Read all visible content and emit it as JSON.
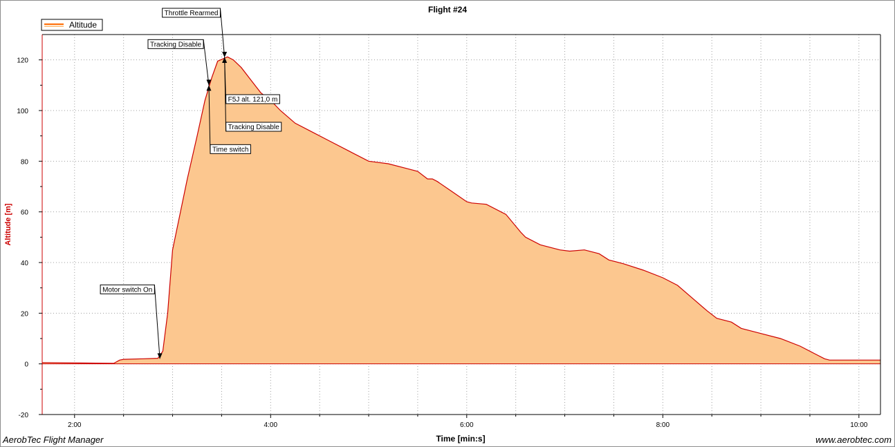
{
  "colors": {
    "line": "#cc0000",
    "fill": "#fcc78f",
    "axis_label": "#cc0000",
    "grid": "#9c9c9c",
    "annotation_box": "#ffffff",
    "legend_line": "#ff6a00"
  },
  "footer": {
    "left": "AerobTec Flight Manager",
    "right": "www.aerobtec.com"
  },
  "chart_data": {
    "type": "area",
    "title": "Flight #24",
    "xlabel": "Time [min:s]",
    "ylabel": "Altitude [m]",
    "xlim": [
      1.67,
      10.22
    ],
    "ylim": [
      -20,
      130
    ],
    "grid": true,
    "legend": {
      "placement": "top-left",
      "entries": [
        "Altitude"
      ]
    },
    "x_ticks": [
      {
        "value": 2,
        "label": "2:00"
      },
      {
        "value": 4,
        "label": "4:00"
      },
      {
        "value": 6,
        "label": "6:00"
      },
      {
        "value": 8,
        "label": "8:00"
      },
      {
        "value": 10,
        "label": "10:00"
      }
    ],
    "y_ticks": [
      -20,
      0,
      20,
      40,
      60,
      80,
      100,
      120
    ],
    "series": [
      {
        "name": "Altitude",
        "x": [
          1.67,
          2.4,
          2.46,
          2.5,
          2.7,
          2.85,
          2.9,
          2.95,
          3.0,
          3.08,
          3.15,
          3.25,
          3.33,
          3.4,
          3.46,
          3.52,
          3.56,
          3.62,
          3.7,
          3.8,
          3.9,
          4.0,
          4.1,
          4.25,
          4.4,
          4.6,
          4.8,
          5.0,
          5.2,
          5.4,
          5.5,
          5.6,
          5.65,
          5.7,
          5.85,
          6.0,
          6.05,
          6.2,
          6.4,
          6.55,
          6.6,
          6.75,
          6.95,
          7.05,
          7.2,
          7.35,
          7.45,
          7.6,
          7.8,
          8.0,
          8.15,
          8.3,
          8.45,
          8.55,
          8.7,
          8.8,
          9.0,
          9.2,
          9.4,
          9.55,
          9.65,
          9.7,
          10.22
        ],
        "values": [
          0.5,
          0.2,
          1.5,
          1.8,
          2.0,
          2.2,
          5,
          20,
          45,
          60,
          73,
          90,
          104,
          113,
          119.5,
          120.5,
          121.2,
          120,
          117,
          112,
          107,
          104,
          100,
          95,
          92,
          88,
          84,
          80,
          79,
          77,
          76,
          73,
          73,
          72,
          68,
          64,
          63.5,
          63,
          59,
          52,
          50,
          47,
          45,
          44.5,
          45,
          43.5,
          41,
          39.5,
          37,
          34,
          31,
          26,
          21,
          18,
          16.5,
          14,
          12,
          10,
          7,
          4,
          2,
          1.5,
          1.5
        ]
      }
    ],
    "annotations": [
      {
        "label": "Motor switch On",
        "x": 2.87,
        "y": 2
      },
      {
        "label": "Tracking Disable",
        "x": 3.37,
        "y": 110
      },
      {
        "label": "Throttle Rearmed",
        "x": 3.53,
        "y": 121
      },
      {
        "label": "F5J alt. 121,0 m",
        "x": 3.53,
        "y": 121
      },
      {
        "label": "Tracking Disable",
        "x": 3.53,
        "y": 121
      },
      {
        "label": "Time switch",
        "x": 3.37,
        "y": 110
      }
    ]
  }
}
